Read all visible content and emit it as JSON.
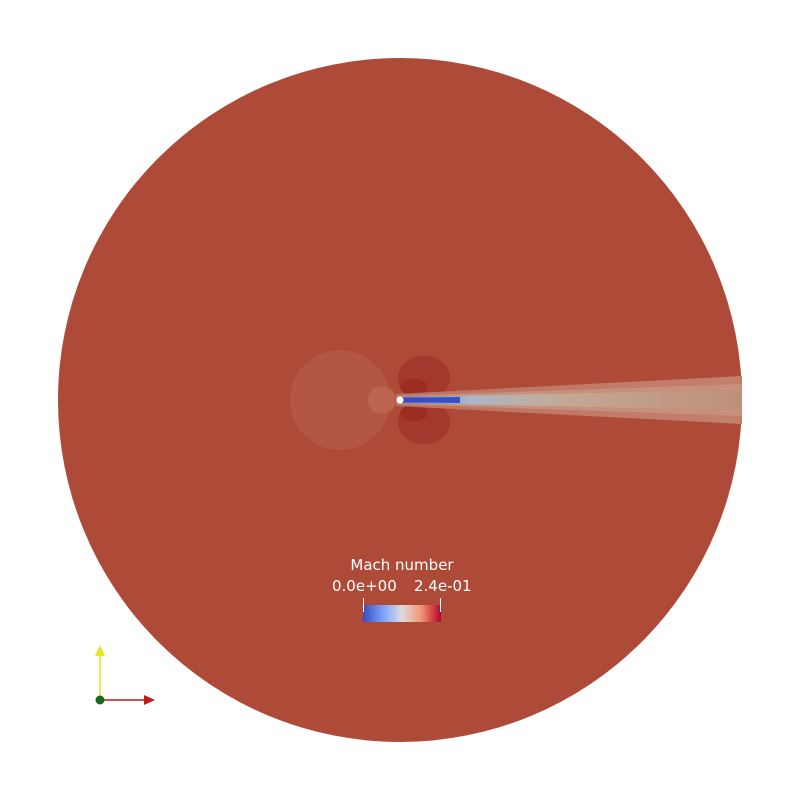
{
  "scalar_bar": {
    "title": "Mach number",
    "min_label": "0.0e+00",
    "max_label": "2.4e-01",
    "colormap": [
      "#3b4cc0",
      "#7b9ff9",
      "#c0d4f5",
      "#f2cbb7",
      "#ee8468",
      "#b40426"
    ]
  },
  "colors": {
    "background": "#ffffff",
    "freestream": "#ad4a38",
    "orientation_x_axis": "#c41a1a",
    "orientation_y_axis": "#e6e61a",
    "orientation_origin": "#1a661a"
  }
}
